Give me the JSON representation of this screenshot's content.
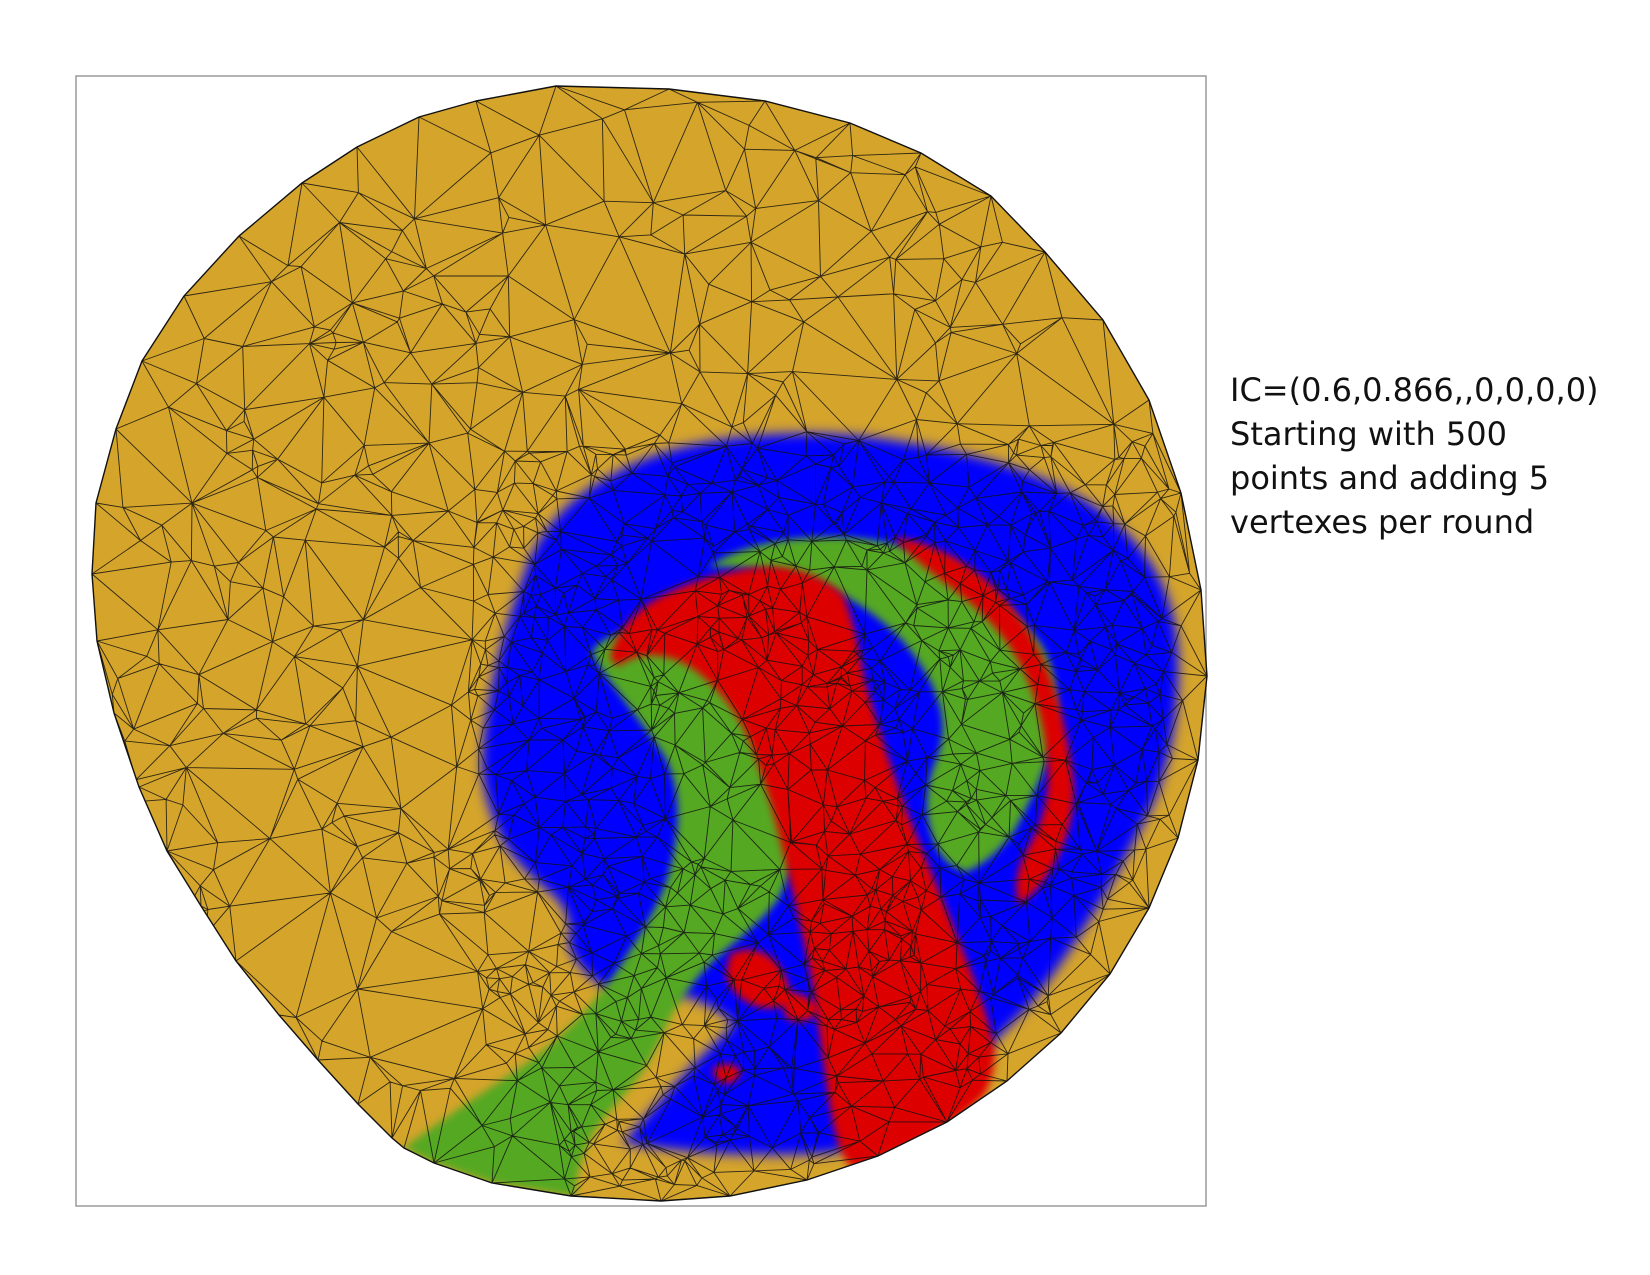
{
  "figure": {
    "caption_lines": [
      "IC=(0.6,0.866,,0,0,0,0)",
      "Starting with 500",
      "points and adding 5",
      "vertexes per round"
    ]
  },
  "legend_colors": {
    "background_region": "#d4a42b",
    "blue_region": "#0000ff",
    "red_region": "#dd0000",
    "green_region": "#55a820",
    "mesh_edge": "#111111"
  }
}
